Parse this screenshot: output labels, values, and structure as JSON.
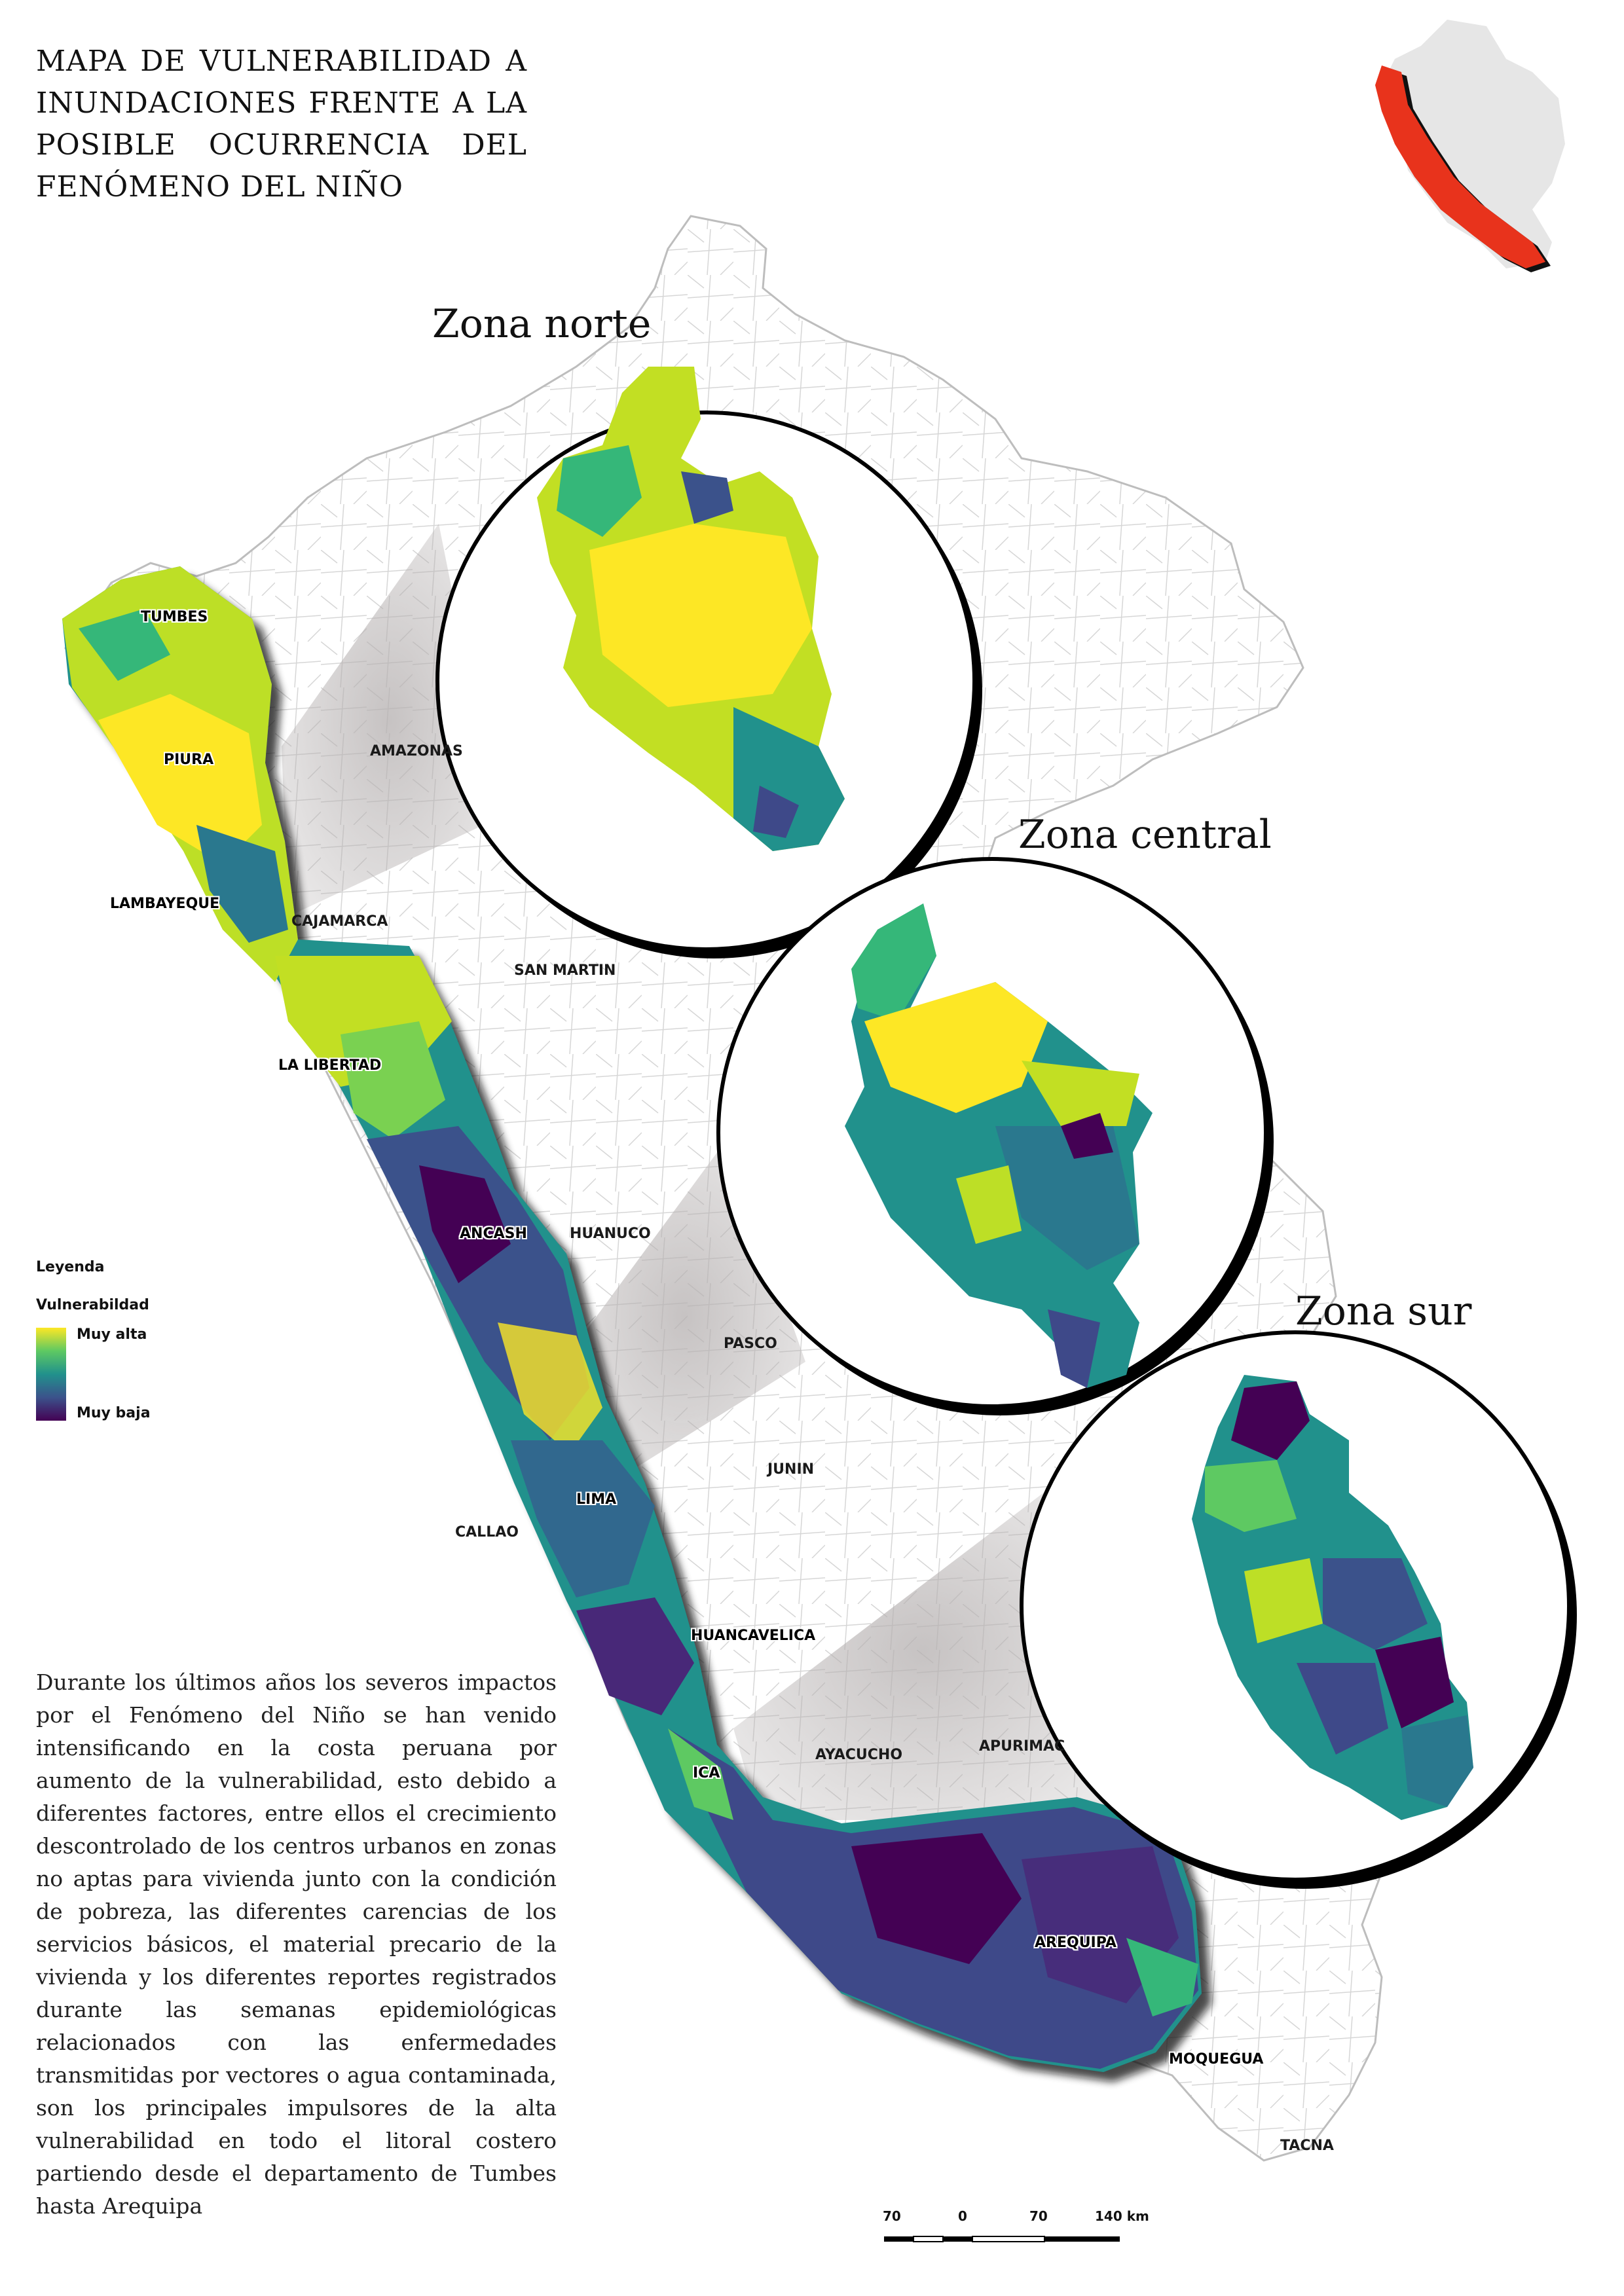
{
  "title": "MAPA DE VULNERABILIDAD A INUNDACIONES FRENTE A LA POSIBLE OCURRENCIA DEL FENÓMENO DEL NIÑO",
  "zones": {
    "north": "Zona norte",
    "central": "Zona central",
    "south": "Zona sur"
  },
  "departments": {
    "tumbes": "TUMBES",
    "piura": "PIURA",
    "amazonas": "AMAZONAS",
    "lambayeque": "LAMBAYEQUE",
    "cajamarca": "CAJAMARCA",
    "san_martin": "SAN MARTIN",
    "la_libertad": "LA LIBERTAD",
    "ancash": "ANCASH",
    "huanuco": "HUANUCO",
    "pasco": "PASCO",
    "junin": "JUNIN",
    "lima": "LIMA",
    "callao": "CALLAO",
    "huancavelica": "HUANCAVELICA",
    "ica": "ICA",
    "ayacucho": "AYACUCHO",
    "apurimac": "APURIMAC",
    "arequipa": "AREQUIPA",
    "moquegua": "MOQUEGUA",
    "tacna": "TACNA"
  },
  "legend": {
    "heading": "Leyenda",
    "variable": "Vulnerabildad",
    "high": "Muy alta",
    "low": "Muy baja",
    "ramp_colors": [
      "#fde725",
      "#5ec962",
      "#21918c",
      "#3b528b",
      "#440154"
    ]
  },
  "description": "Durante los últimos años los severos impactos por el Fenómeno del Niño se han venido intensificando en la costa peruana por aumento de la vulnerabilidad, esto debido a diferentes factores, entre ellos el crecimiento descontrolado de los centros urbanos en zonas no aptas para vivienda junto con la condición de pobreza, las diferentes carencias de los servicios básicos, el material precario de la vivienda y los diferentes reportes registrados durante las semanas epidemiológicas relacionados con las enfermedades transmitidas por vectores o agua contaminada, son los principales impulsores de la alta vulnerabilidad en todo el litoral costero partiendo desde el departamento de Tumbes hasta Arequipa",
  "scale_bar": {
    "labels": [
      "70",
      "0",
      "70",
      "140 km"
    ]
  },
  "colors": {
    "locator_highlight": "#e8331c",
    "locator_country": "#e6e6e6",
    "country_outline": "#bdbdbd",
    "focus_wedge": "#b5b0b0"
  }
}
